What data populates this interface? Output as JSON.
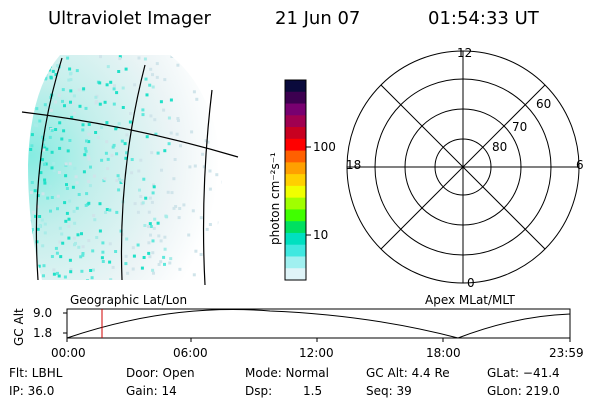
{
  "header": {
    "title": "Ultraviolet Imager",
    "date": "21 Jun 07",
    "time": "01:54:33 UT"
  },
  "colorbar": {
    "unit_label": "photon cm⁻²s⁻¹",
    "ticks": [
      "100",
      "10"
    ],
    "colors": [
      "#0a0a3c",
      "#3c0050",
      "#780070",
      "#a00050",
      "#c80020",
      "#ff0000",
      "#ff6000",
      "#ffa000",
      "#ffd000",
      "#f0ff00",
      "#a0ff00",
      "#40ff00",
      "#00e060",
      "#00e0c0",
      "#40e8e0",
      "#a0f0f0",
      "#dff4f8"
    ]
  },
  "polar_plot": {
    "mlt_labels": [
      "12",
      "18",
      "6",
      "0"
    ],
    "mlat_labels": [
      "60",
      "70",
      "80"
    ]
  },
  "altitude_plot": {
    "left_label": "Geographic Lat/Lon",
    "right_label": "Apex MLat/MLT",
    "y_axis_label": "GC Alt",
    "y_ticks": [
      "9.0",
      "1.8"
    ],
    "x_ticks": [
      "00:00",
      "06:00",
      "12:00",
      "18:00",
      "23:59"
    ],
    "marker_time": "01:54:33"
  },
  "status": {
    "flt": "Flt: LBHL",
    "door": "Door: Open",
    "mode": "Mode: Normal",
    "gc_alt": "GC Alt: 4.4 Re",
    "glat": "GLat: −41.4",
    "ip": "IP: 36.0",
    "gain": "Gain: 14",
    "dsp_label": "Dsp:",
    "dsp_value": "1.5",
    "seq": "Seq: 39",
    "glon": "GLon: 219.0"
  }
}
